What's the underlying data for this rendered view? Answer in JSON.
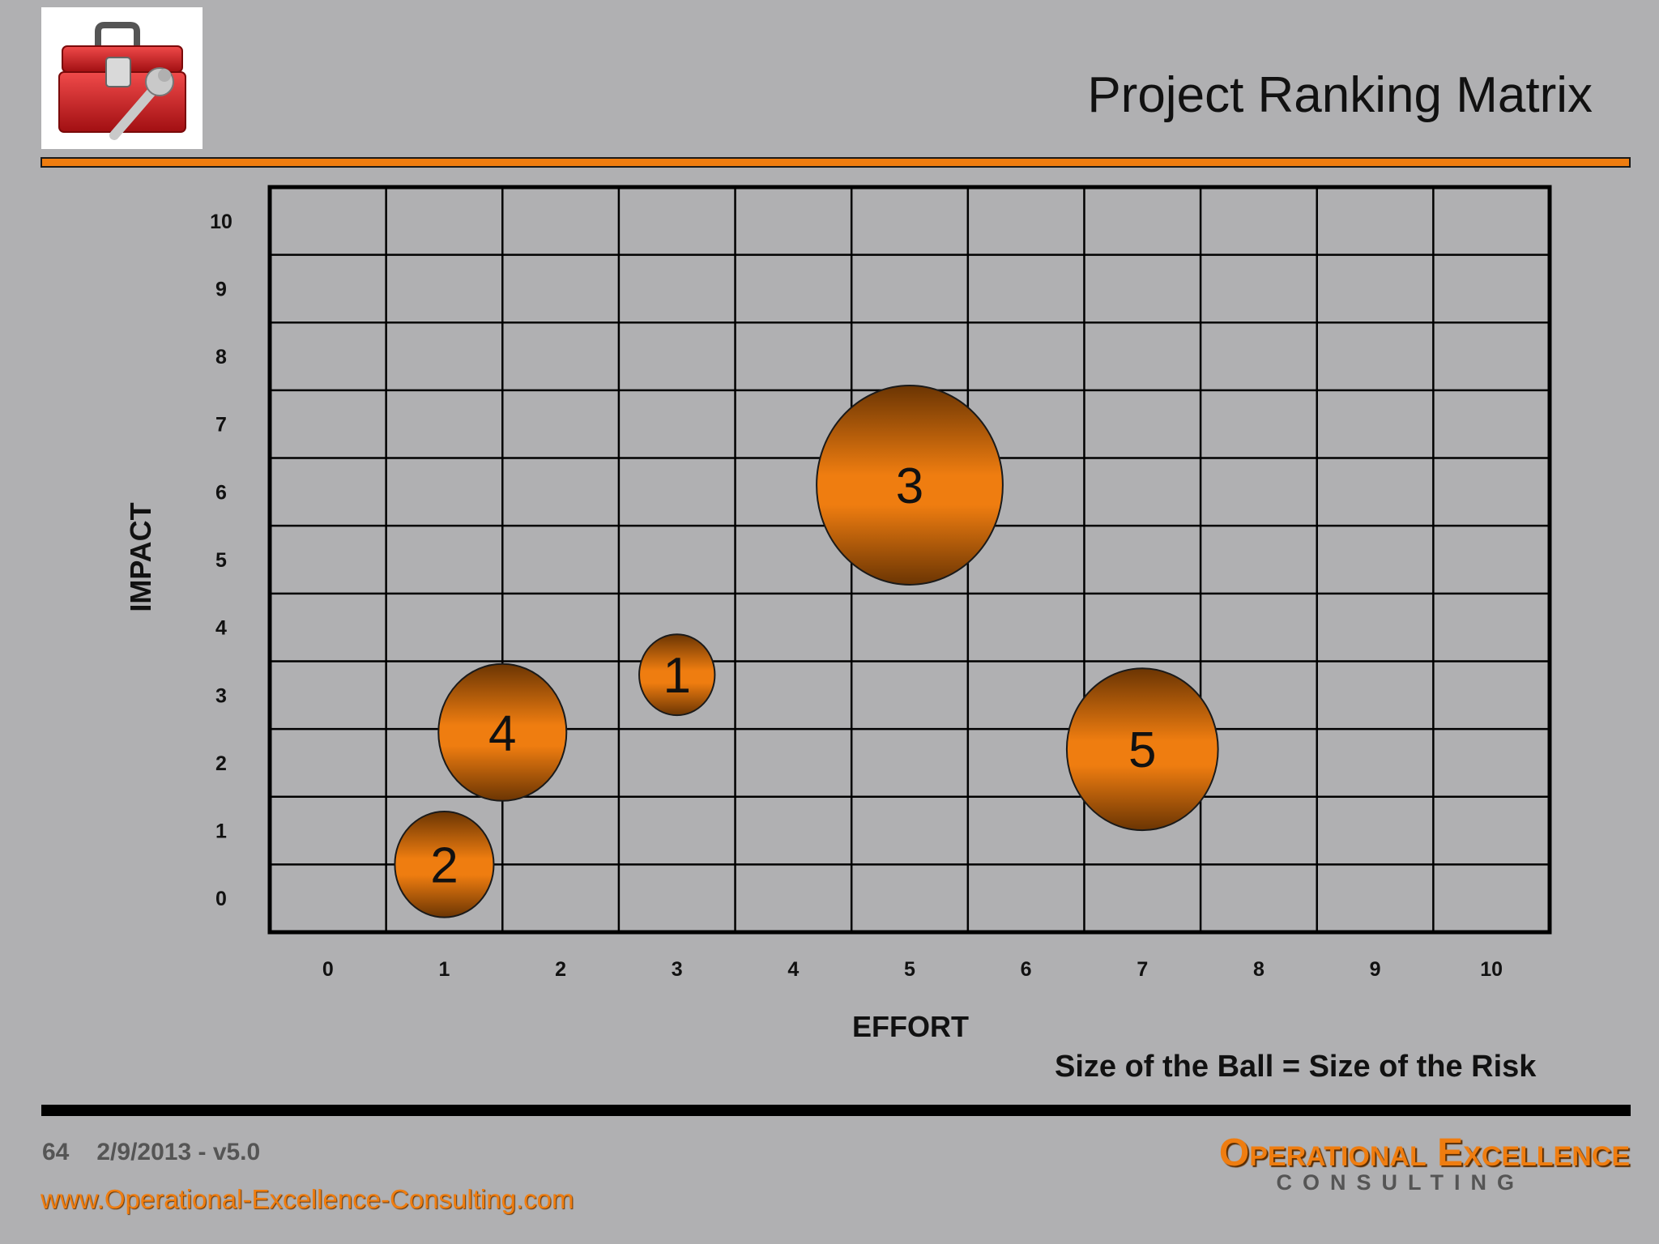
{
  "header": {
    "title": "Project Ranking Matrix",
    "logo_icon": "toolbox-wrench-icon"
  },
  "caption": "Size of the Ball = Size of the Risk",
  "footer": {
    "page_number": "64",
    "version": "2/9/2013 - v5.0",
    "url": "www.Operational-Excellence-Consulting.com",
    "brand_name": "Operational Excellence",
    "brand_sub": "CONSULTING"
  },
  "colors": {
    "background": "#b0b0b2",
    "accent": "#ef7d10",
    "bubble_dark": "#6b3503",
    "grid": "#000000"
  },
  "chart_data": {
    "type": "scatter",
    "encoding": "bubble",
    "xlabel": "EFFORT",
    "ylabel": "IMPACT",
    "xlim": [
      0,
      10
    ],
    "ylim": [
      0,
      10
    ],
    "x_ticks": [
      "0",
      "1",
      "2",
      "3",
      "4",
      "5",
      "6",
      "7",
      "8",
      "9",
      "10"
    ],
    "y_ticks": [
      "0",
      "1",
      "2",
      "3",
      "4",
      "5",
      "6",
      "7",
      "8",
      "9",
      "10"
    ],
    "grid": true,
    "points": [
      {
        "label": "1",
        "x": 3.5,
        "y": 3.8,
        "size": 0.65
      },
      {
        "label": "2",
        "x": 1.5,
        "y": 1.0,
        "size": 0.85
      },
      {
        "label": "3",
        "x": 5.5,
        "y": 6.6,
        "size": 1.6
      },
      {
        "label": "4",
        "x": 2.0,
        "y": 2.95,
        "size": 1.1
      },
      {
        "label": "5",
        "x": 7.5,
        "y": 2.7,
        "size": 1.3
      }
    ]
  }
}
